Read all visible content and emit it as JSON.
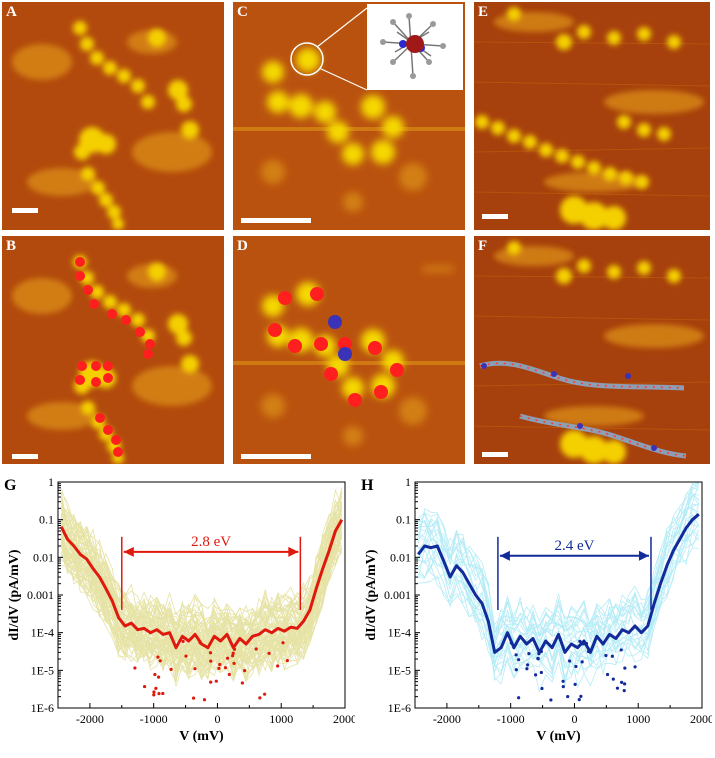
{
  "panels": {
    "a": "A",
    "b": "B",
    "c": "C",
    "d": "D",
    "e": "E",
    "f": "F"
  },
  "colors": {
    "stm_bg": "#b5450c",
    "stm_mid": "#d98a14",
    "stm_bright": "#f7d800",
    "red_marker": "#ff1f1f",
    "blue_marker": "#3a33b8",
    "g_main": "#e0190f",
    "g_bundle": "#b8b000",
    "h_main": "#132a9a",
    "h_bundle": "#2ec9e6"
  },
  "chart_data": [
    {
      "type": "line",
      "panel_label": "G",
      "xlabel": "V (mV)",
      "ylabel": "dI/dV (pA/mV)",
      "xlim": [
        -2500,
        2000
      ],
      "ylim": [
        1e-06,
        1
      ],
      "yscale": "log",
      "xticks": [
        -2000,
        -1000,
        0,
        1000,
        2000
      ],
      "xtick_labels": [
        "-2000",
        "-1000",
        "0",
        "1000",
        "2000"
      ],
      "yticks": [
        1,
        0.1,
        0.01,
        0.001,
        0.0001,
        1e-05,
        1e-06
      ],
      "ytick_labels": [
        "1",
        "0.1",
        "0.01",
        "0.001",
        "1E-4",
        "1E-5",
        "1E-6"
      ],
      "annotation": {
        "text": "2.8 eV",
        "x_from": -1500,
        "x_to": 1300,
        "y": 0.014
      },
      "main_series": {
        "x": [
          -2450,
          -2350,
          -2250,
          -2150,
          -2050,
          -1950,
          -1850,
          -1750,
          -1650,
          -1550,
          -1450,
          -1350,
          -1250,
          -1150,
          -1050,
          -950,
          -850,
          -750,
          -650,
          -550,
          -450,
          -350,
          -250,
          -150,
          -50,
          50,
          150,
          250,
          350,
          450,
          550,
          650,
          750,
          850,
          950,
          1050,
          1150,
          1250,
          1350,
          1450,
          1550,
          1650,
          1750,
          1850,
          1950
        ],
        "y": [
          0.065,
          0.03,
          0.02,
          0.012,
          0.009,
          0.005,
          0.003,
          0.0015,
          0.0007,
          0.00025,
          0.00015,
          0.00018,
          0.00012,
          0.00013,
          0.0001,
          0.00012,
          9e-05,
          0.0001,
          4e-05,
          8e-05,
          6e-05,
          9e-05,
          5e-05,
          4e-05,
          8e-05,
          6e-05,
          9e-05,
          4e-05,
          7e-05,
          5e-05,
          8e-05,
          9e-05,
          0.00012,
          0.0001,
          0.00013,
          0.00011,
          0.00014,
          0.00013,
          0.0002,
          0.0004,
          0.0015,
          0.005,
          0.015,
          0.05,
          0.1
        ]
      },
      "bundle_count": 70
    },
    {
      "type": "line",
      "panel_label": "H",
      "xlabel": "V (mV)",
      "ylabel": "dI/dV (pA/mV)",
      "xlim": [
        -2500,
        2000
      ],
      "ylim": [
        1e-06,
        1
      ],
      "yscale": "log",
      "xticks": [
        -2000,
        -1000,
        0,
        1000,
        2000
      ],
      "xtick_labels": [
        "-2000",
        "-1000",
        "0",
        "1000",
        "2000"
      ],
      "yticks": [
        1,
        0.1,
        0.01,
        0.001,
        0.0001,
        1e-05,
        1e-06
      ],
      "ytick_labels": [
        "1",
        "0.1",
        "0.01",
        "0.001",
        "1E-4",
        "1E-5",
        "1E-6"
      ],
      "annotation": {
        "text": "2.4 eV",
        "x_from": -1200,
        "x_to": 1200,
        "y": 0.011
      },
      "main_series": {
        "x": [
          -2450,
          -2350,
          -2250,
          -2150,
          -2050,
          -1950,
          -1850,
          -1750,
          -1650,
          -1550,
          -1450,
          -1350,
          -1250,
          -1150,
          -1050,
          -950,
          -850,
          -750,
          -650,
          -550,
          -450,
          -350,
          -250,
          -150,
          -50,
          50,
          150,
          250,
          350,
          450,
          550,
          650,
          750,
          850,
          950,
          1050,
          1150,
          1250,
          1350,
          1450,
          1550,
          1650,
          1750,
          1850,
          1950
        ],
        "y": [
          0.012,
          0.02,
          0.018,
          0.02,
          0.008,
          0.003,
          0.006,
          0.004,
          0.002,
          0.001,
          0.0006,
          0.0002,
          3e-05,
          4e-05,
          0.0001,
          4e-05,
          8e-05,
          5e-05,
          7e-05,
          3e-05,
          6e-05,
          4e-05,
          9e-05,
          3e-05,
          5e-05,
          4e-05,
          6e-05,
          3e-05,
          8e-05,
          5e-05,
          9e-05,
          7e-05,
          0.00012,
          0.0001,
          0.00015,
          0.0001,
          0.00015,
          0.0006,
          0.002,
          0.006,
          0.015,
          0.03,
          0.06,
          0.1,
          0.14
        ]
      },
      "bundle_count": 25
    }
  ]
}
